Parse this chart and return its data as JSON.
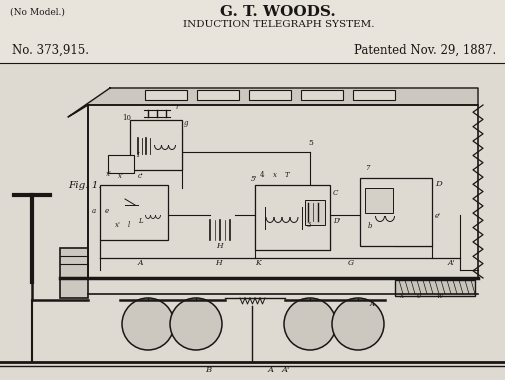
{
  "background_color": "#d4d0c8",
  "paper_color": "#e8e4dc",
  "line_color": "#1a1614",
  "title_line1": "G. T. WOODS.",
  "title_line2": "INDUCTION TELEGRAPH SYSTEM.",
  "no_model": "(No Model.)",
  "patent_no": "No. 373,915.",
  "patented": "Patented Nov. 29, 1887.",
  "fig_label": "Fig. 1.",
  "fig_width": 5.06,
  "fig_height": 3.8,
  "dpi": 100
}
